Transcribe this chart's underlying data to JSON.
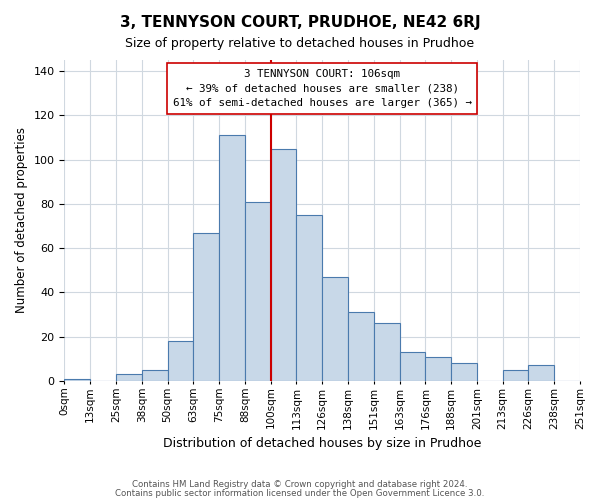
{
  "title": "3, TENNYSON COURT, PRUDHOE, NE42 6RJ",
  "subtitle": "Size of property relative to detached houses in Prudhoe",
  "xlabel": "Distribution of detached houses by size in Prudhoe",
  "ylabel": "Number of detached properties",
  "bar_labels": [
    "0sqm",
    "13sqm",
    "25sqm",
    "38sqm",
    "50sqm",
    "63sqm",
    "75sqm",
    "88sqm",
    "100sqm",
    "113sqm",
    "126sqm",
    "138sqm",
    "151sqm",
    "163sqm",
    "176sqm",
    "188sqm",
    "201sqm",
    "213sqm",
    "226sqm",
    "238sqm",
    "251sqm"
  ],
  "bar_values": [
    1,
    0,
    3,
    5,
    18,
    67,
    111,
    81,
    105,
    75,
    47,
    31,
    26,
    13,
    11,
    8,
    0,
    5,
    7,
    0
  ],
  "bar_color": "#c8d8e8",
  "bar_edge_color": "#4a7aad",
  "vline_x": 8,
  "vline_color": "#cc0000",
  "annotation_text": "3 TENNYSON COURT: 106sqm\n← 39% of detached houses are smaller (238)\n61% of semi-detached houses are larger (365) →",
  "annotation_box_color": "#ffffff",
  "annotation_box_edge": "#cc0000",
  "yticks": [
    0,
    20,
    40,
    60,
    80,
    100,
    120,
    140
  ],
  "ylim": [
    0,
    145
  ],
  "footer1": "Contains HM Land Registry data © Crown copyright and database right 2024.",
  "footer2": "Contains public sector information licensed under the Open Government Licence 3.0.",
  "background_color": "#ffffff",
  "grid_color": "#d0d8e0"
}
